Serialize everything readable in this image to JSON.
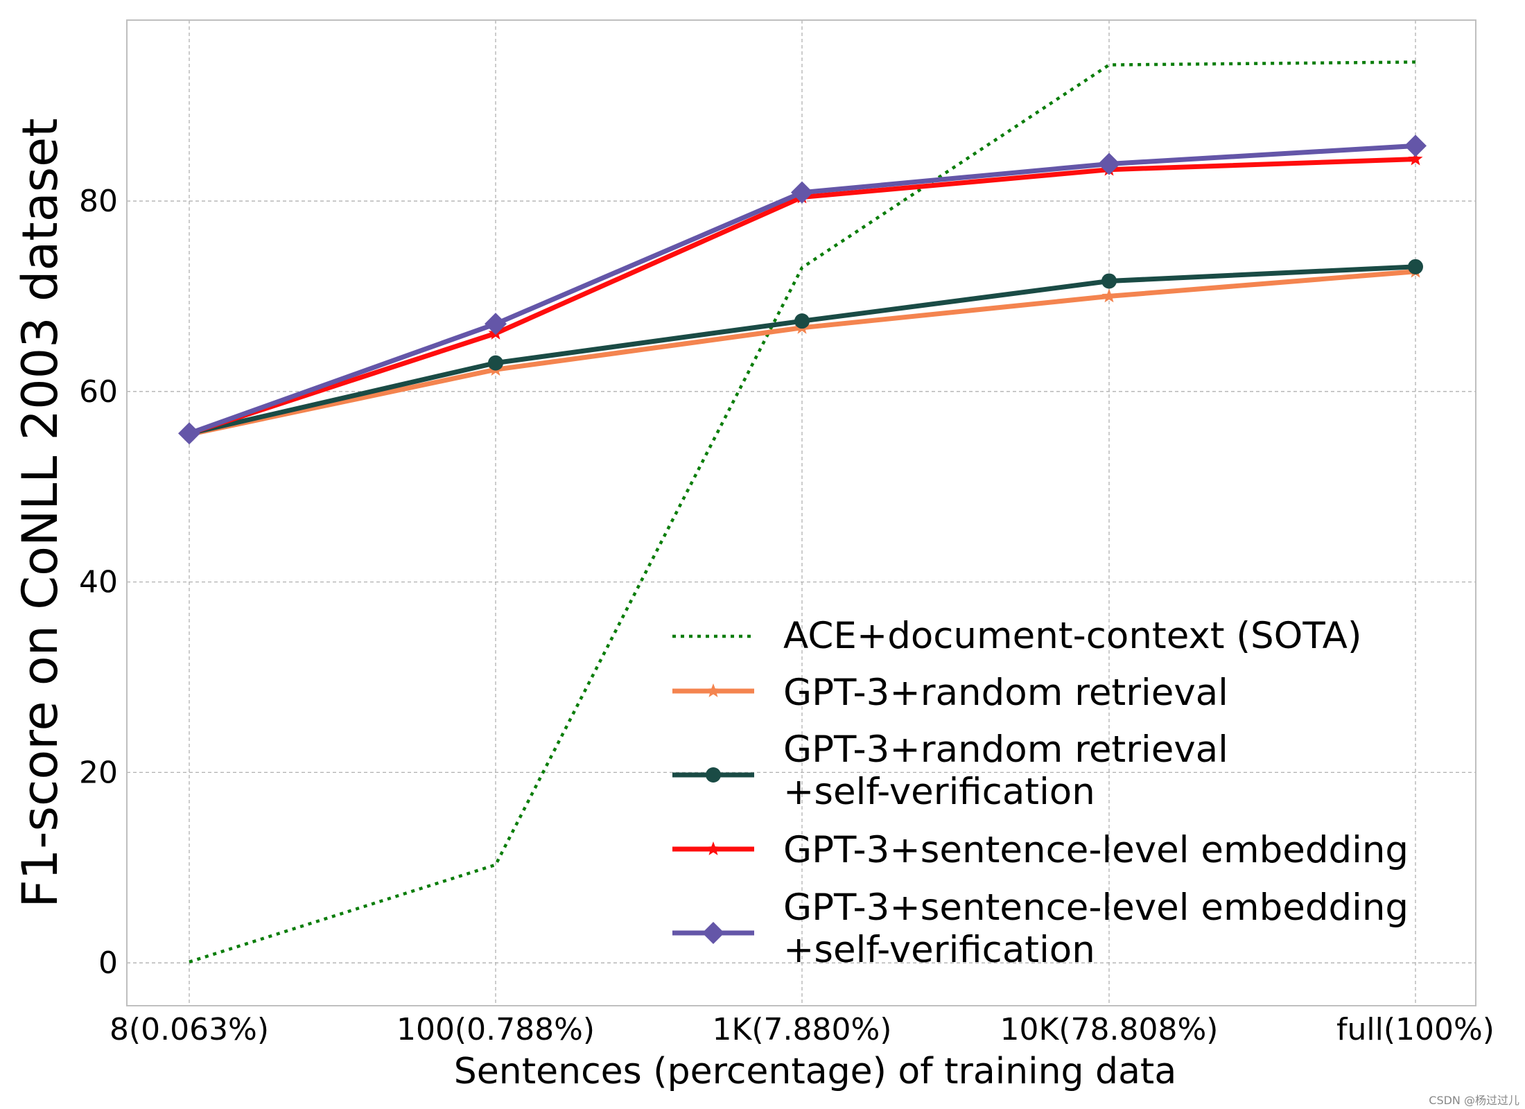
{
  "chart_data": {
    "type": "line",
    "categories": [
      "8(0.063%)",
      "100(0.788%)",
      "1K(7.880%)",
      "10K(78.808%)",
      "full(100%)"
    ],
    "xlabel": "Sentences (percentage) of training data",
    "ylabel": "F1-score on CoNLL 2003 dataset",
    "ylim": [
      -4.5,
      99
    ],
    "yticks": [
      0,
      20,
      40,
      60,
      80
    ],
    "grid": true,
    "legend_position": "lower-right",
    "series": [
      {
        "name": "ACE+document-context (SOTA)",
        "values": [
          0.1,
          10.3,
          73.0,
          94.3,
          94.6
        ],
        "color": "#0a7d0a",
        "style": "dotted",
        "marker": "none"
      },
      {
        "name": "GPT-3+random retrieval",
        "values": [
          55.5,
          62.3,
          66.7,
          70.0,
          72.6
        ],
        "color": "#f4844f",
        "style": "solid",
        "marker": "star"
      },
      {
        "name": "GPT-3+random retrieval\n+self-verification",
        "values": [
          55.6,
          63.0,
          67.4,
          71.6,
          73.1
        ],
        "color": "#1a4b45",
        "style": "solid",
        "marker": "circle"
      },
      {
        "name": "GPT-3+sentence-level embedding",
        "values": [
          55.6,
          66.1,
          80.4,
          83.3,
          84.4
        ],
        "color": "#ff0d0d",
        "style": "solid",
        "marker": "star"
      },
      {
        "name": "GPT-3+sentence-level embedding\n+self-verification",
        "values": [
          55.6,
          67.1,
          80.9,
          83.9,
          85.8
        ],
        "color": "#6456a8",
        "style": "solid",
        "marker": "diamond"
      }
    ]
  },
  "watermark": "CSDN @杨过过儿"
}
